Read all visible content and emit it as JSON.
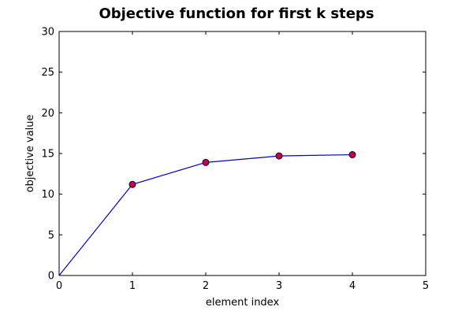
{
  "chart_data": {
    "type": "line",
    "title": "Objective function for first k steps",
    "xlabel": "element index",
    "ylabel": "objective value",
    "xlim": [
      0,
      5
    ],
    "ylim": [
      0,
      30
    ],
    "x_ticks": [
      0,
      1,
      2,
      3,
      4,
      5
    ],
    "y_ticks": [
      0,
      5,
      10,
      15,
      20,
      25,
      30
    ],
    "grid": false,
    "series": [
      {
        "x": [
          0,
          1,
          2,
          3,
          4
        ],
        "values": [
          0,
          11.2,
          13.9,
          14.7,
          14.85
        ],
        "line_color": "#0000cc",
        "marker_color": "#cc0033",
        "marker_edge_color": "#000066",
        "markers_on": [
          1,
          2,
          3,
          4
        ]
      }
    ]
  }
}
